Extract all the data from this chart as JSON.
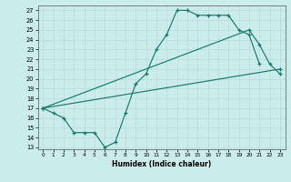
{
  "xlabel": "Humidex (Indice chaleur)",
  "xlim": [
    -0.5,
    23.5
  ],
  "ylim": [
    12.8,
    27.5
  ],
  "xticks": [
    0,
    1,
    2,
    3,
    4,
    5,
    6,
    7,
    8,
    9,
    10,
    11,
    12,
    13,
    14,
    15,
    16,
    17,
    18,
    19,
    20,
    21,
    22,
    23
  ],
  "yticks": [
    13,
    14,
    15,
    16,
    17,
    18,
    19,
    20,
    21,
    22,
    23,
    24,
    25,
    26,
    27
  ],
  "bg_color": "#caecea",
  "line_color": "#1a7a6e",
  "line1_x": [
    0,
    1,
    2,
    3,
    4,
    5,
    6,
    7,
    8,
    9,
    10,
    11,
    12,
    13,
    14,
    15,
    16,
    17,
    18,
    19,
    20,
    21
  ],
  "line1_y": [
    17.0,
    16.5,
    16.0,
    14.5,
    14.5,
    14.5,
    13.0,
    13.5,
    16.5,
    19.5,
    20.5,
    23.0,
    24.5,
    27.0,
    27.0,
    26.5,
    26.5,
    26.5,
    26.5,
    25.0,
    24.5,
    21.5
  ],
  "line2_x": [
    0,
    23
  ],
  "line2_y": [
    17.0,
    21.0
  ],
  "line3_x": [
    0,
    20,
    21,
    22,
    23
  ],
  "line3_y": [
    17.0,
    25.0,
    23.5,
    21.5,
    20.5
  ]
}
